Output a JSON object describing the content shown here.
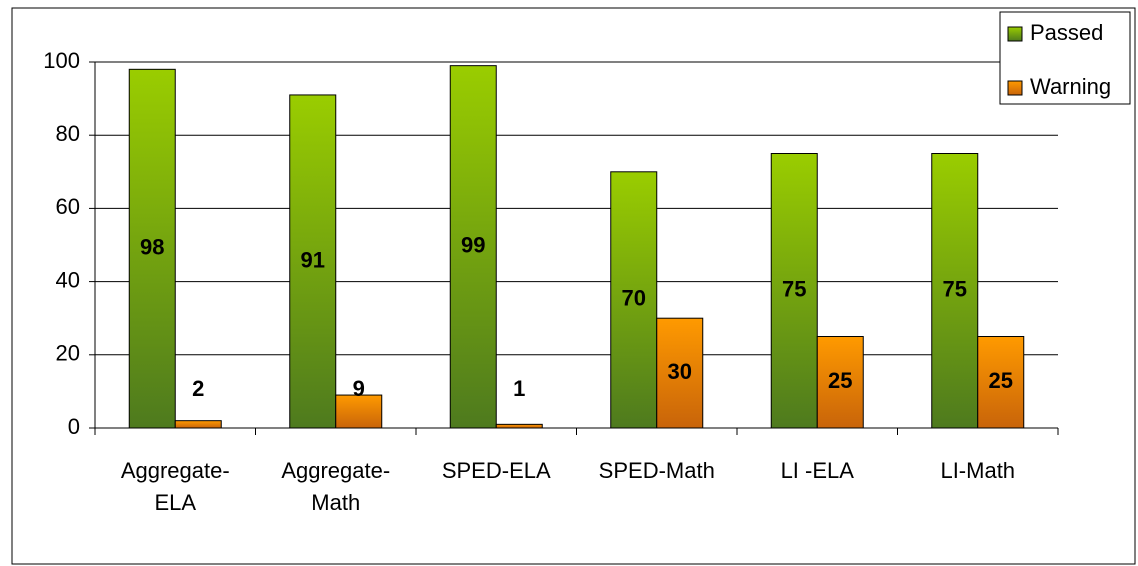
{
  "chart_data": {
    "type": "bar",
    "categories": [
      "Aggregate-\nELA",
      "Aggregate-\nMath",
      "SPED-ELA",
      "SPED-Math",
      "LI -ELA",
      "LI-Math"
    ],
    "series": [
      {
        "name": "Passed",
        "color": "#8cbf1a",
        "values": [
          98,
          91,
          99,
          70,
          75,
          75
        ]
      },
      {
        "name": "Warning",
        "color": "#f39200",
        "values": [
          2,
          9,
          1,
          30,
          25,
          25
        ]
      }
    ],
    "ylim": [
      0,
      100
    ],
    "yticks": [
      0,
      20,
      40,
      60,
      80,
      100
    ],
    "grid": true,
    "legend": "top-right"
  }
}
